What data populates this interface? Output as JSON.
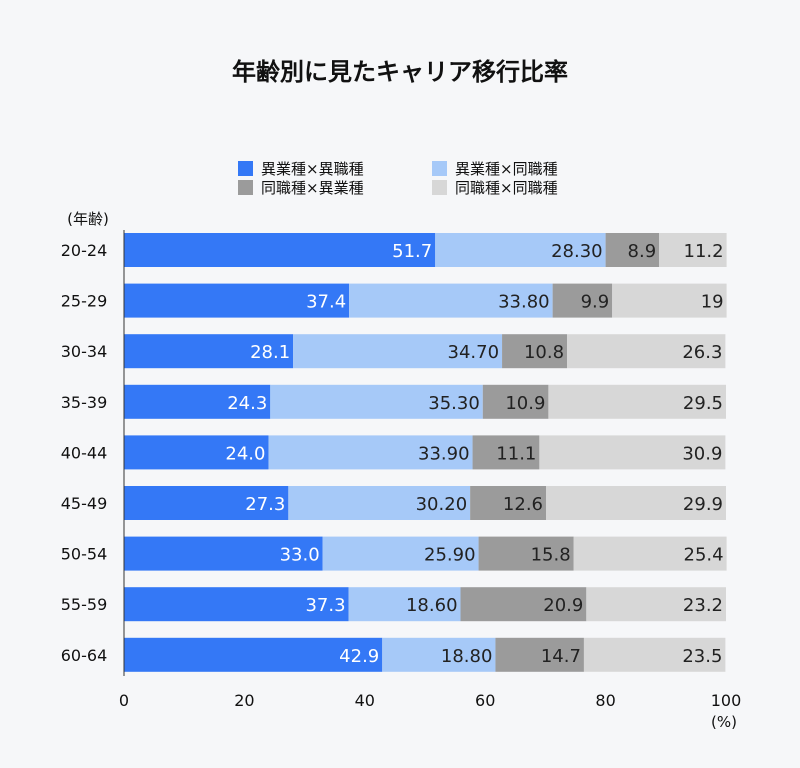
{
  "chart_data": {
    "type": "bar",
    "orientation": "horizontal",
    "stacked": true,
    "title": "年齢別に見たキャリア移行比率",
    "ylabel": "(年齢)",
    "xlabel": "(%)",
    "xlim": [
      0,
      100
    ],
    "xticks": [
      "0",
      "20",
      "40",
      "60",
      "80",
      "100"
    ],
    "grid": false,
    "legend_position": "top",
    "categories": [
      "20-24",
      "25-29",
      "30-34",
      "35-39",
      "40-44",
      "45-49",
      "50-54",
      "55-59",
      "60-64"
    ],
    "series": [
      {
        "name": "異業種×異職種",
        "color": "#3478f6",
        "values": [
          51.7,
          37.4,
          28.1,
          24.3,
          24.0,
          27.3,
          33.0,
          37.3,
          42.9
        ],
        "labels": [
          "51.7",
          "37.4",
          "28.1",
          "24.3",
          "24.0",
          "27.3",
          "33.0",
          "37.3",
          "42.9"
        ]
      },
      {
        "name": "異業種×同職種",
        "color": "#a6c9f8",
        "values": [
          28.3,
          33.8,
          34.7,
          35.3,
          33.9,
          30.2,
          25.9,
          18.6,
          18.8
        ],
        "labels": [
          "28.30",
          "33.80",
          "34.70",
          "35.30",
          "33.90",
          "30.20",
          "25.90",
          "18.60",
          "18.80"
        ]
      },
      {
        "name": "同職種×異業種",
        "color": "#9b9b9b",
        "values": [
          8.9,
          9.9,
          10.8,
          10.9,
          11.1,
          12.6,
          15.8,
          20.9,
          14.7
        ],
        "labels": [
          "8.9",
          "9.9",
          "10.8",
          "10.9",
          "11.1",
          "12.6",
          "15.8",
          "20.9",
          "14.7"
        ]
      },
      {
        "name": "同職種×同職種",
        "color": "#d7d7d7",
        "values": [
          11.2,
          19,
          26.3,
          29.5,
          30.9,
          29.9,
          25.4,
          23.2,
          23.5
        ],
        "labels": [
          "11.2",
          "19",
          "26.3",
          "29.5",
          "30.9",
          "29.9",
          "25.4",
          "23.2",
          "23.5"
        ]
      }
    ]
  }
}
